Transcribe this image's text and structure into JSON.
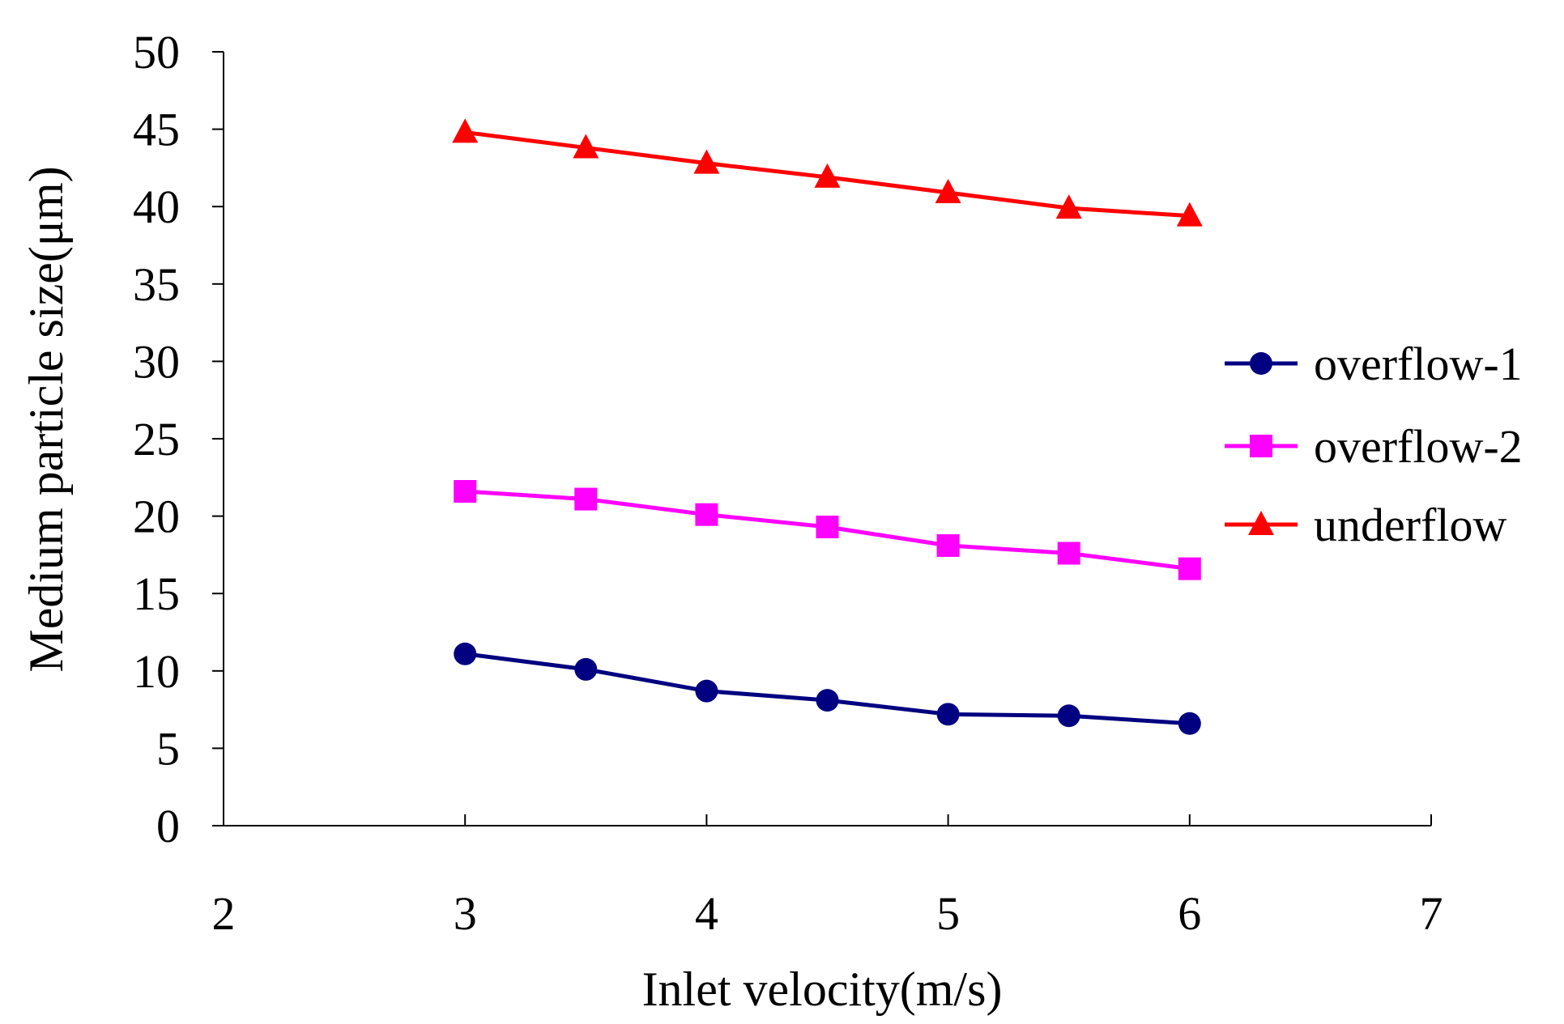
{
  "chart_data": {
    "type": "line",
    "title": "",
    "xlabel": "Inlet velocity(m/s)",
    "ylabel": "Medium particle size(μm)",
    "xlim": [
      2,
      7
    ],
    "ylim": [
      0,
      50
    ],
    "xticks": [
      2,
      3,
      4,
      5,
      6,
      7
    ],
    "yticks": [
      0,
      5,
      10,
      15,
      20,
      25,
      30,
      35,
      40,
      45,
      50
    ],
    "x": [
      3,
      3.5,
      4,
      4.5,
      5,
      5.5,
      6
    ],
    "grid": false,
    "legend_position": "right",
    "series": [
      {
        "name": "overflow-1",
        "color": "#000080",
        "marker": "circle",
        "values": [
          11.1,
          10.1,
          8.7,
          8.1,
          7.2,
          7.1,
          6.6
        ]
      },
      {
        "name": "overflow-2",
        "color": "#FF00FF",
        "marker": "square",
        "values": [
          21.6,
          21.1,
          20.1,
          19.3,
          18.1,
          17.6,
          16.6
        ]
      },
      {
        "name": "underflow",
        "color": "#FF0000",
        "marker": "triangle",
        "values": [
          44.8,
          43.8,
          42.8,
          41.9,
          40.9,
          39.9,
          39.4
        ]
      }
    ]
  }
}
